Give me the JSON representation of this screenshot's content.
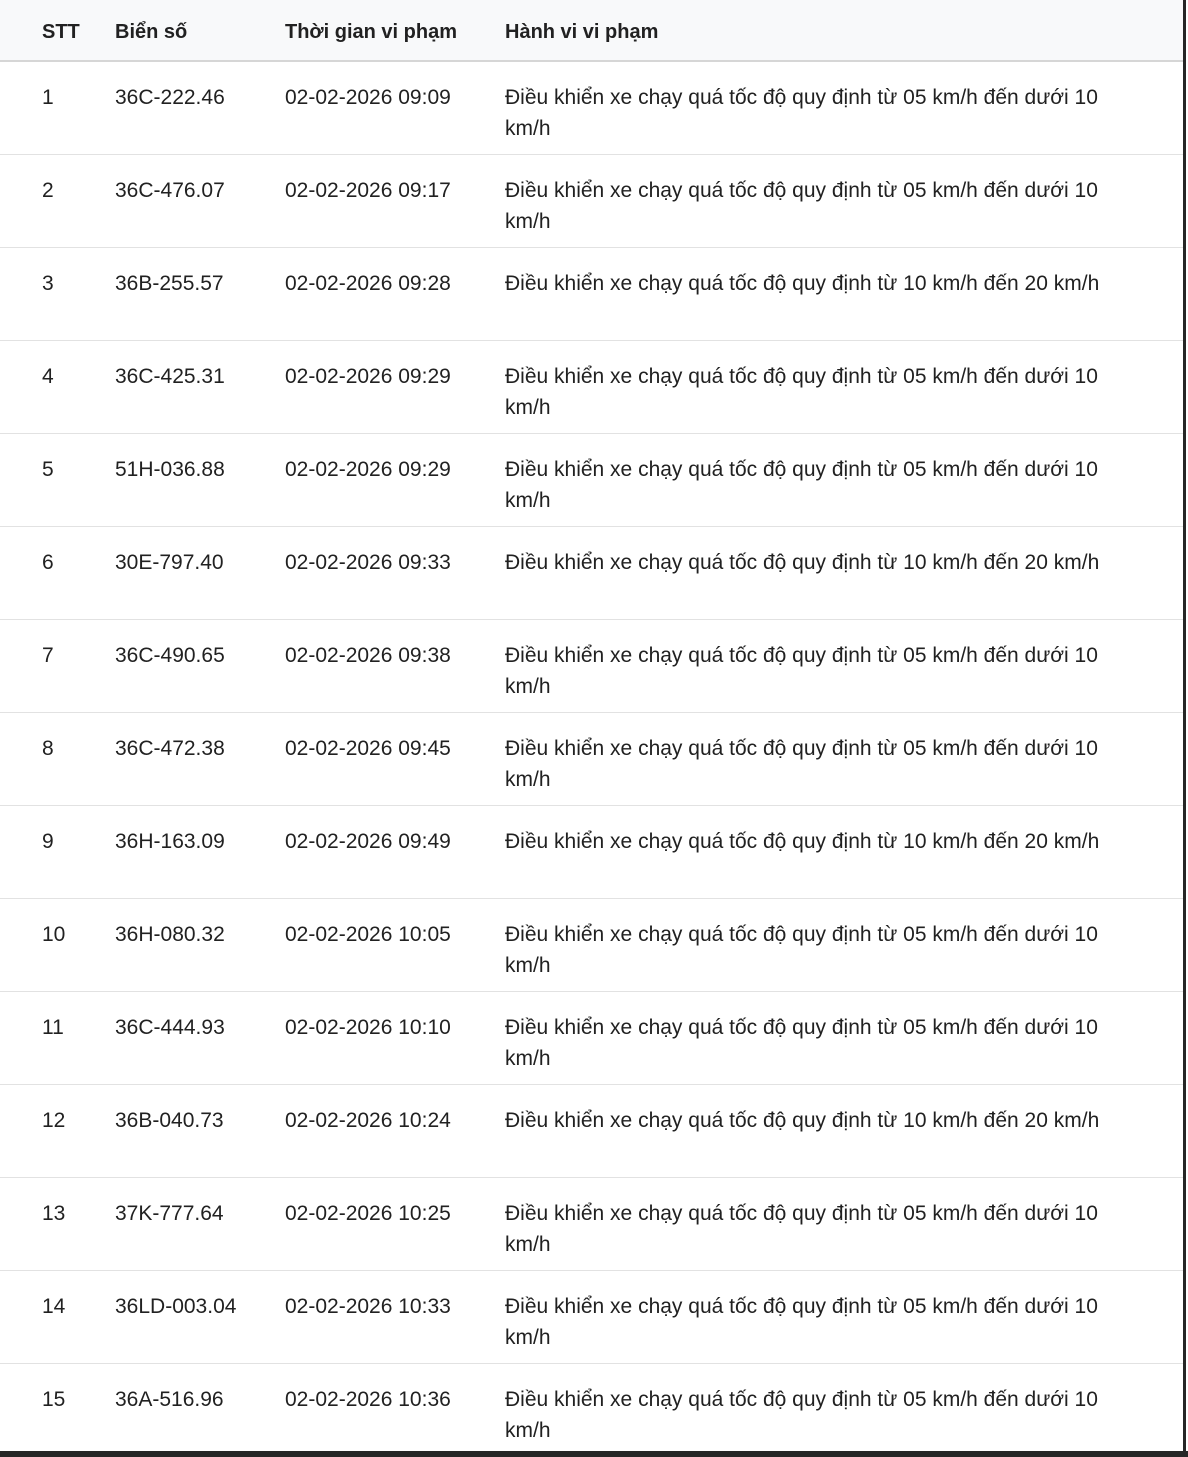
{
  "colors": {
    "header_bg": "#f8f9fa",
    "header_divider": "#d6d6d6",
    "row_divider": "#e2e2e2",
    "text": "#212121",
    "frame_edge": "#262626"
  },
  "table": {
    "columns": {
      "stt": "STT",
      "plate": "Biển số",
      "time": "Thời gian vi phạm",
      "behavior": "Hành vi vi phạm"
    },
    "rows": [
      {
        "stt": "1",
        "plate": "36C-222.46",
        "time": "02-02-2026 09:09",
        "behavior": "Điều khiển xe chạy quá tốc độ quy định từ 05 km/h đến dưới 10 km/h"
      },
      {
        "stt": "2",
        "plate": "36C-476.07",
        "time": "02-02-2026 09:17",
        "behavior": "Điều khiển xe chạy quá tốc độ quy định từ 05 km/h đến dưới 10 km/h"
      },
      {
        "stt": "3",
        "plate": "36B-255.57",
        "time": "02-02-2026 09:28",
        "behavior": "Điều khiển xe chạy quá tốc độ quy định từ 10 km/h đến 20 km/h"
      },
      {
        "stt": "4",
        "plate": "36C-425.31",
        "time": "02-02-2026 09:29",
        "behavior": "Điều khiển xe chạy quá tốc độ quy định từ 05 km/h đến dưới 10 km/h"
      },
      {
        "stt": "5",
        "plate": "51H-036.88",
        "time": "02-02-2026 09:29",
        "behavior": "Điều khiển xe chạy quá tốc độ quy định từ 05 km/h đến dưới 10 km/h"
      },
      {
        "stt": "6",
        "plate": "30E-797.40",
        "time": "02-02-2026 09:33",
        "behavior": "Điều khiển xe chạy quá tốc độ quy định từ 10 km/h đến 20 km/h"
      },
      {
        "stt": "7",
        "plate": "36C-490.65",
        "time": "02-02-2026 09:38",
        "behavior": "Điều khiển xe chạy quá tốc độ quy định từ 05 km/h đến dưới 10 km/h"
      },
      {
        "stt": "8",
        "plate": "36C-472.38",
        "time": "02-02-2026 09:45",
        "behavior": "Điều khiển xe chạy quá tốc độ quy định từ 05 km/h đến dưới 10 km/h"
      },
      {
        "stt": "9",
        "plate": "36H-163.09",
        "time": "02-02-2026 09:49",
        "behavior": "Điều khiển xe chạy quá tốc độ quy định từ 10 km/h đến 20 km/h"
      },
      {
        "stt": "10",
        "plate": "36H-080.32",
        "time": "02-02-2026 10:05",
        "behavior": "Điều khiển xe chạy quá tốc độ quy định từ 05 km/h đến dưới 10 km/h"
      },
      {
        "stt": "11",
        "plate": "36C-444.93",
        "time": "02-02-2026 10:10",
        "behavior": "Điều khiển xe chạy quá tốc độ quy định từ 05 km/h đến dưới 10 km/h"
      },
      {
        "stt": "12",
        "plate": "36B-040.73",
        "time": "02-02-2026 10:24",
        "behavior": "Điều khiển xe chạy quá tốc độ quy định từ 10 km/h đến 20 km/h"
      },
      {
        "stt": "13",
        "plate": "37K-777.64",
        "time": "02-02-2026 10:25",
        "behavior": "Điều khiển xe chạy quá tốc độ quy định từ 05 km/h đến dưới 10 km/h"
      },
      {
        "stt": "14",
        "plate": "36LD-003.04",
        "time": "02-02-2026 10:33",
        "behavior": "Điều khiển xe chạy quá tốc độ quy định từ 05 km/h đến dưới 10 km/h"
      },
      {
        "stt": "15",
        "plate": "36A-516.96",
        "time": "02-02-2026 10:36",
        "behavior": "Điều khiển xe chạy quá tốc độ quy định từ 05 km/h đến dưới 10 km/h"
      }
    ]
  }
}
